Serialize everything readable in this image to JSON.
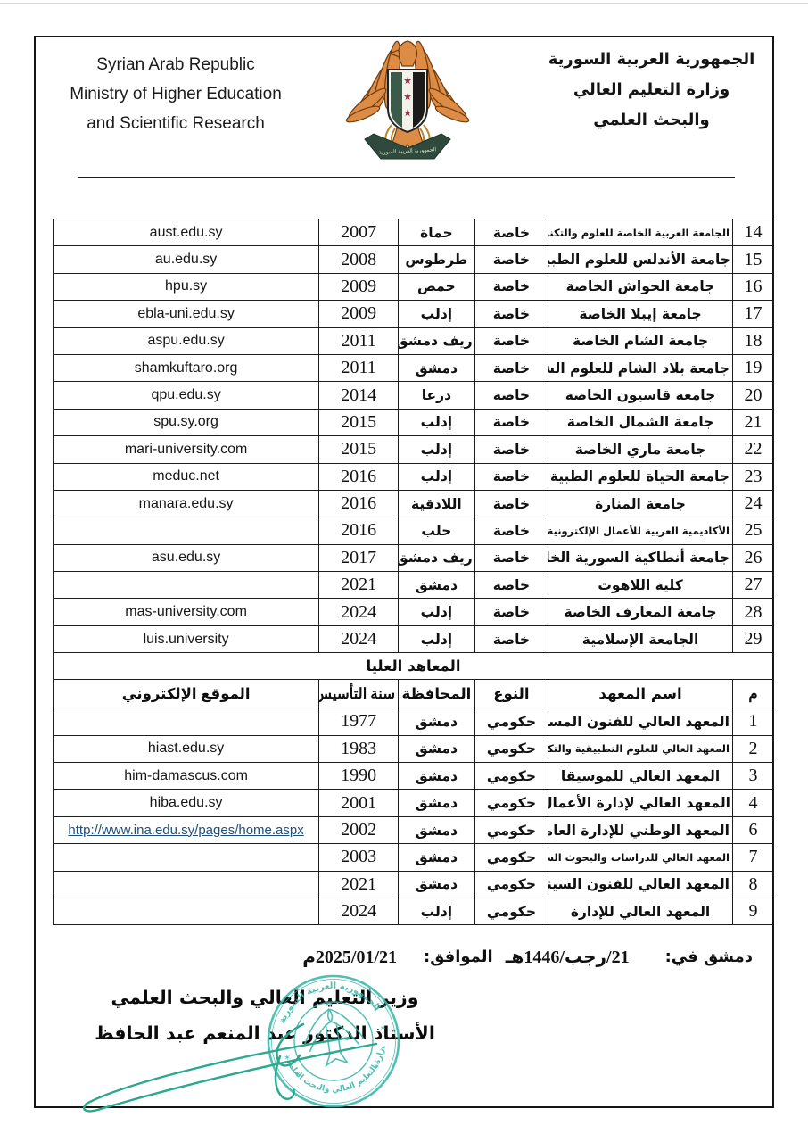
{
  "header": {
    "english_lines": [
      "Syrian Arab Republic",
      "Ministry of Higher Education",
      "and Scientific Research"
    ],
    "arabic_lines": [
      "الجمهورية العربية السورية",
      "وزارة التعليم العالي",
      "والبحث العلمي"
    ],
    "emblem_banner": "الجمهورية العربية السورية"
  },
  "universities_table": {
    "rows": [
      {
        "num": "14",
        "name": "الجامعة العربية الخاصة للعلوم والتكنولوجيا",
        "type": "خاصة",
        "province": "حماة",
        "year": "2007",
        "website": "aust.edu.sy",
        "small": true
      },
      {
        "num": "15",
        "name": "جامعة الأندلس للعلوم الطبية",
        "type": "خاصة",
        "province": "طرطوس",
        "year": "2008",
        "website": "au.edu.sy"
      },
      {
        "num": "16",
        "name": "جامعة الحواش الخاصة",
        "type": "خاصة",
        "province": "حمص",
        "year": "2009",
        "website": "hpu.sy"
      },
      {
        "num": "17",
        "name": "جامعة إيبلا الخاصة",
        "type": "خاصة",
        "province": "إدلب",
        "year": "2009",
        "website": "ebla-uni.edu.sy"
      },
      {
        "num": "18",
        "name": "جامعة الشام الخاصة",
        "type": "خاصة",
        "province": "ريف دمشق",
        "year": "2011",
        "website": "aspu.edu.sy"
      },
      {
        "num": "19",
        "name": "جامعة بلاد الشام للعلوم الشرعية",
        "type": "خاصة",
        "province": "دمشق",
        "year": "2011",
        "website": "shamkuftaro.org"
      },
      {
        "num": "20",
        "name": "جامعة قاسيون الخاصة",
        "type": "خاصة",
        "province": "درعا",
        "year": "2014",
        "website": "qpu.edu.sy"
      },
      {
        "num": "21",
        "name": "جامعة الشمال الخاصة",
        "type": "خاصة",
        "province": "إدلب",
        "year": "2015",
        "website": "spu.sy.org"
      },
      {
        "num": "22",
        "name": "جامعة ماري الخاصة",
        "type": "خاصة",
        "province": "إدلب",
        "year": "2015",
        "website": "mari-university.com"
      },
      {
        "num": "23",
        "name": "جامعة الحياة للعلوم الطبية",
        "type": "خاصة",
        "province": "إدلب",
        "year": "2016",
        "website": "meduc.net"
      },
      {
        "num": "24",
        "name": "جامعة المنارة",
        "type": "خاصة",
        "province": "اللاذقية",
        "year": "2016",
        "website": "manara.edu.sy"
      },
      {
        "num": "25",
        "name": "الأكاديمية العربية للأعمال الإلكترونية",
        "type": "خاصة",
        "province": "حلب",
        "year": "2016",
        "website": "",
        "small": true
      },
      {
        "num": "26",
        "name": "جامعة أنطاكية السورية الخاصة",
        "type": "خاصة",
        "province": "ريف دمشق",
        "year": "2017",
        "website": "asu.edu.sy"
      },
      {
        "num": "27",
        "name": "كلية اللاهوت",
        "type": "خاصة",
        "province": "دمشق",
        "year": "2021",
        "website": ""
      },
      {
        "num": "28",
        "name": "جامعة المعارف الخاصة",
        "type": "خاصة",
        "province": "إدلب",
        "year": "2024",
        "website": "mas-university.com"
      },
      {
        "num": "29",
        "name": "الجامعة الإسلامية",
        "type": "خاصة",
        "province": "إدلب",
        "year": "2024",
        "website": "luis.university"
      }
    ]
  },
  "section_header": "المعاهد العليا",
  "institutes_table": {
    "columns": {
      "num": "م",
      "name": "اسم المعهد",
      "type": "النوع",
      "province": "المحافظة",
      "year": "سنة التأسيس",
      "website": "الموقع الإلكتروني"
    },
    "rows": [
      {
        "num": "1",
        "name": "المعهد العالي للفنون المسرحية",
        "type": "حكومي",
        "province": "دمشق",
        "year": "1977",
        "website": ""
      },
      {
        "num": "2",
        "name": "المعهد العالي للعلوم التطبيقية والتكنولوجيا",
        "type": "حكومي",
        "province": "دمشق",
        "year": "1983",
        "website": "hiast.edu.sy",
        "small": true
      },
      {
        "num": "3",
        "name": "المعهد العالي للموسيقا",
        "type": "حكومي",
        "province": "دمشق",
        "year": "1990",
        "website": "him-damascus.com"
      },
      {
        "num": "4",
        "name": "المعهد العالي لإدارة الأعمال",
        "type": "حكومي",
        "province": "دمشق",
        "year": "2001",
        "website": "hiba.edu.sy"
      },
      {
        "num": "6",
        "name": "المعهد الوطني للإدارة العامة",
        "type": "حكومي",
        "province": "دمشق",
        "year": "2002",
        "website": "http://www.ina.edu.sy/pages/home.aspx",
        "link": true
      },
      {
        "num": "7",
        "name": "المعهد العالي للدراسات والبحوث السكانية",
        "type": "حكومي",
        "province": "دمشق",
        "year": "2003",
        "website": "",
        "small": true
      },
      {
        "num": "8",
        "name": "المعهد العالي للفنون السينمائية",
        "type": "حكومي",
        "province": "دمشق",
        "year": "2021",
        "website": ""
      },
      {
        "num": "9",
        "name": "المعهد العالي للإدارة",
        "type": "حكومي",
        "province": "إدلب",
        "year": "2024",
        "website": ""
      }
    ]
  },
  "footer": {
    "date_label": "دمشق في:",
    "hijri_date": "21/رجب/1446هـ",
    "corresponding_label": "الموافق:",
    "gregorian_date": "2025/01/21م",
    "signature_title": "وزير التعليم العالي والبحث العلمي",
    "signature_name": "الأستاذ الدكتور عبد المنعم عبد الحافظ"
  },
  "stamp": {
    "top_text": "الجمهورية العربية السورية",
    "bottom_text": "وزارة التعليم العالي والبحث العلمي"
  },
  "colors": {
    "stamp_teal": "#3ab7aa",
    "signature_green": "#2aa98e",
    "link_blue": "#1f4e79",
    "eagle_orange": "#dd8c45",
    "eagle_outline": "#6b3c12",
    "shield_green": "#3c5a49",
    "shield_black": "#1c1a1a",
    "star_red": "#9c2c44",
    "banner_green": "#2f4a3c"
  }
}
